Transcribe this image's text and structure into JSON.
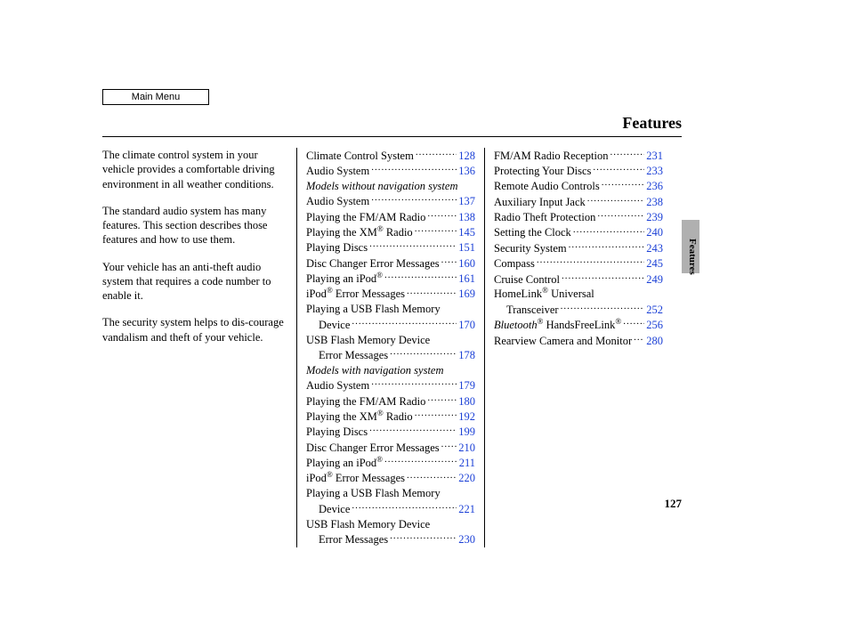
{
  "header": {
    "main_menu_label": "Main Menu",
    "title": "Features"
  },
  "side": {
    "label": "Features"
  },
  "page_number": "127",
  "intro": {
    "paragraphs": [
      "The climate control system in your vehicle provides a comfortable driving environment in all weather conditions.",
      "The standard audio system has many features. This section describes those features and how to use them.",
      "Your vehicle has an anti-theft audio system that requires a code number to enable it.",
      "The security system helps to dis-courage vandalism and theft of your vehicle."
    ]
  },
  "toc_col1": [
    {
      "type": "entry",
      "label": "Climate Control System",
      "page": "128"
    },
    {
      "type": "entry",
      "label": "Audio System",
      "page": "136"
    },
    {
      "type": "section",
      "label": "Models without navigation system"
    },
    {
      "type": "entry",
      "label": "Audio System",
      "page": "137"
    },
    {
      "type": "entry",
      "label": "Playing the FM/AM Radio",
      "page": "138"
    },
    {
      "type": "entry",
      "label_html": "Playing the XM<span class=\"reg\">®</span> Radio",
      "page": "145"
    },
    {
      "type": "entry",
      "label": "Playing Discs",
      "page": "151"
    },
    {
      "type": "entry",
      "label": "Disc Changer Error Messages",
      "page": "160"
    },
    {
      "type": "entry",
      "label_html": "Playing an iPod<span class=\"reg\">®</span>",
      "page": "161"
    },
    {
      "type": "entry",
      "label_html": "iPod<span class=\"reg\">®</span> Error Messages",
      "page": "169"
    },
    {
      "type": "cont",
      "label": "Playing a USB Flash Memory"
    },
    {
      "type": "entry",
      "indent": true,
      "label": "Device",
      "page": "170"
    },
    {
      "type": "cont",
      "label": "USB Flash Memory Device"
    },
    {
      "type": "entry",
      "indent": true,
      "label": "Error Messages",
      "page": "178"
    },
    {
      "type": "section",
      "label": "Models with navigation system"
    },
    {
      "type": "entry",
      "label": "Audio System",
      "page": "179"
    },
    {
      "type": "entry",
      "label": "Playing the FM/AM Radio",
      "page": "180"
    },
    {
      "type": "entry",
      "label_html": "Playing the XM<span class=\"reg\">®</span> Radio",
      "page": "192"
    },
    {
      "type": "entry",
      "label": "Playing Discs",
      "page": "199"
    },
    {
      "type": "entry",
      "label": "Disc Changer Error Messages",
      "page": "210"
    },
    {
      "type": "entry",
      "label_html": "Playing an iPod<span class=\"reg\">®</span>",
      "page": "211"
    },
    {
      "type": "entry",
      "label_html": "iPod<span class=\"reg\">®</span> Error Messages",
      "page": "220"
    },
    {
      "type": "cont",
      "label": "Playing a USB Flash Memory"
    },
    {
      "type": "entry",
      "indent": true,
      "label": "Device",
      "page": "221"
    },
    {
      "type": "cont",
      "label": "USB Flash Memory Device"
    },
    {
      "type": "entry",
      "indent": true,
      "label": "Error Messages",
      "page": "230"
    }
  ],
  "toc_col2": [
    {
      "type": "entry",
      "label": "FM/AM Radio Reception",
      "page": "231"
    },
    {
      "type": "entry",
      "label": "Protecting Your Discs",
      "page": "233"
    },
    {
      "type": "entry",
      "label": "Remote Audio Controls",
      "page": "236"
    },
    {
      "type": "entry",
      "label": "Auxiliary Input Jack",
      "page": "238"
    },
    {
      "type": "entry",
      "label": "Radio Theft Protection",
      "page": "239"
    },
    {
      "type": "entry",
      "label": "Setting the Clock",
      "page": "240"
    },
    {
      "type": "entry",
      "label": "Security System",
      "page": "243"
    },
    {
      "type": "entry",
      "label": "Compass",
      "page": "245"
    },
    {
      "type": "entry",
      "label": "Cruise Control",
      "page": "249"
    },
    {
      "type": "cont",
      "label_html": "HomeLink<span class=\"reg\">®</span> Universal"
    },
    {
      "type": "entry",
      "indent": true,
      "label": "Transceiver",
      "page": "252"
    },
    {
      "type": "entry",
      "label_html": "<span class=\"italic\">Bluetooth</span><span class=\"reg\">®</span> HandsFreeLink<span class=\"reg\">®</span>",
      "page": "256"
    },
    {
      "type": "entry",
      "label": "Rearview Camera and Monitor",
      "page": "280"
    }
  ],
  "colors": {
    "link": "#1a3fd6",
    "text": "#000000",
    "tab_bg": "#b0b0b0",
    "background": "#ffffff"
  }
}
